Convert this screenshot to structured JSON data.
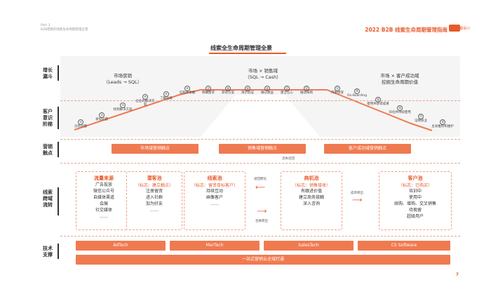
{
  "header": {
    "left_line1": "Part 3",
    "left_line2": "B2B营销的线索生命周期管理全景",
    "right": "2022 B2B 线索生命周期管理指南",
    "logo_text": "致趣百川"
  },
  "title": "线索全生命周期管理全景",
  "left_labels": [
    "增长漏斗",
    "客户意识阶梯",
    "营销触点",
    "线索跨域流转",
    "技术支撑"
  ],
  "stages": [
    {
      "name": "市场营销",
      "sub": "（Leads → SQL）"
    },
    {
      "name": "市场 × 销售域",
      "sub": "（SQL → Cash）"
    },
    {
      "name": "市场 × 客户成功域",
      "sub": "挖掘生命周期价值"
    }
  ],
  "steps": [
    {
      "n": "①",
      "label": "没有问题"
    },
    {
      "n": "②",
      "label": "发现问题"
    },
    {
      "n": "③",
      "label": "找到解决方案"
    },
    {
      "n": "④",
      "label": "企业的解决方案"
    },
    {
      "n": "⑤",
      "label": "了解益处"
    },
    {
      "n": "⑥",
      "label": "信服并接触"
    },
    {
      "n": "⑦",
      "label": "明确需求"
    },
    {
      "n": "⑧",
      "label": "获得方案"
    },
    {
      "n": "⑨",
      "label": "演示验证"
    },
    {
      "n": "⑩",
      "label": "确认收益"
    },
    {
      "n": "⑪",
      "label": "建立信心"
    },
    {
      "n": "⑫",
      "label": "推动采购"
    },
    {
      "n": "⑬",
      "label": "内部接受"
    },
    {
      "n": "⑭",
      "label": "On-Boarding"
    },
    {
      "n": "⑮",
      "label": "使用并获得成果"
    },
    {
      "n": "⑯",
      "label": "深化并持续使用"
    },
    {
      "n": "⑰",
      "label": "证明商业"
    },
    {
      "n": "⑱",
      "label": "主动推荐和维护"
    }
  ],
  "touchpoints": [
    "市场域营销触点",
    "销售域营销触点",
    "客户成功域营销触点"
  ],
  "pools": [
    {
      "title": "流量来源",
      "sub": "",
      "items": [
        "广告投放",
        "微信公众号",
        "自媒体渠道",
        "会展",
        "社交媒体",
        "……"
      ]
    },
    {
      "title": "潜客池",
      "sub": "（标志：建立触点）",
      "items": [
        "注册留资",
        "进入社群",
        "加为好友",
        "……"
      ]
    },
    {
      "title": "线索池",
      "sub": "（标志：留资目标客户）",
      "items": [
        "持续互动",
        "画像客户",
        "……"
      ]
    },
    {
      "title": "商机池",
      "sub": "（标志：销售接收）",
      "items": [
        "有跟进价值",
        "建立商务接触",
        "深入咨询"
      ]
    },
    {
      "title": "客户池",
      "sub": "（标志：已购买）",
      "items": [
        "培训中",
        "使用中",
        "续购、增购、交叉销售",
        "待挽留",
        "超级用户"
      ]
    }
  ],
  "arrows": {
    "back": "流失召回",
    "nurture": "退回孵化",
    "qualify": "合格转出",
    "close": "成单转出"
  },
  "tech": [
    "AdTech",
    "MarTech",
    "SalesTech",
    "CS Software"
  ],
  "platform": "一站式营销云全域打通",
  "page_number": "7"
}
